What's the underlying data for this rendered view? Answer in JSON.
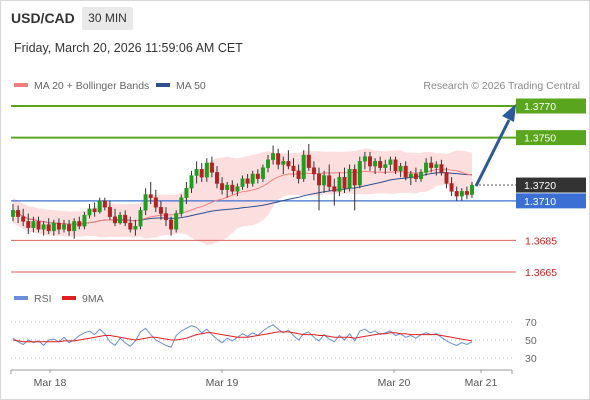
{
  "header": {
    "symbol": "USD/CAD",
    "timeframe": "30 MIN",
    "datetime": "Friday, March 20, 2026 11:59:06 AM CET"
  },
  "legend": {
    "ma20": "MA 20 + Bollinger Bands",
    "ma50": "MA 50",
    "credit": "Research © 2026 Trading Central",
    "rsi": "RSI",
    "rsi_ma": "9MA"
  },
  "colors": {
    "ma20": "#f08080",
    "ma50": "#2f4f8f",
    "bull": "#1e9e1e",
    "bear": "#b22222",
    "resistance": "#5aa51e",
    "pivot": "#3b6fd4",
    "support": "#e06060",
    "current": "#333333",
    "rsi": "#6a8fd8",
    "rsi_ma": "#e02020",
    "arrow": "#2a5a9a"
  },
  "chart_data": [
    {
      "type": "candlestick",
      "ylim": [
        1.3655,
        1.3785
      ],
      "x_ticks": [
        "Mar 18",
        "Mar 19",
        "Mar 20",
        "Mar 21"
      ],
      "levels": [
        {
          "label": "1.3770",
          "value": 1.377,
          "kind": "resistance"
        },
        {
          "label": "1.3750",
          "value": 1.375,
          "kind": "resistance"
        },
        {
          "label": "1.3720",
          "value": 1.372,
          "kind": "current"
        },
        {
          "label": "1.3710",
          "value": 1.371,
          "kind": "pivot"
        },
        {
          "label": "1.3685",
          "value": 1.3685,
          "kind": "support"
        },
        {
          "label": "1.3665",
          "value": 1.3665,
          "kind": "support"
        }
      ],
      "forecast_target": 1.377,
      "candles": [
        [
          1.37,
          1.3708,
          1.3697,
          1.3704
        ],
        [
          1.3704,
          1.3707,
          1.3696,
          1.37
        ],
        [
          1.37,
          1.3705,
          1.3694,
          1.3697
        ],
        [
          1.3697,
          1.3702,
          1.3689,
          1.3693
        ],
        [
          1.3693,
          1.37,
          1.369,
          1.3697
        ],
        [
          1.3697,
          1.37,
          1.369,
          1.3692
        ],
        [
          1.3692,
          1.3697,
          1.3688,
          1.3695
        ],
        [
          1.3695,
          1.3699,
          1.3689,
          1.3691
        ],
        [
          1.3691,
          1.3698,
          1.3688,
          1.3696
        ],
        [
          1.3696,
          1.3699,
          1.3689,
          1.3692
        ],
        [
          1.3692,
          1.3698,
          1.369,
          1.3695
        ],
        [
          1.3695,
          1.3698,
          1.3688,
          1.3691
        ],
        [
          1.3691,
          1.3699,
          1.3686,
          1.3697
        ],
        [
          1.3697,
          1.37,
          1.3692,
          1.3694
        ],
        [
          1.3694,
          1.3703,
          1.3692,
          1.3701
        ],
        [
          1.3701,
          1.3708,
          1.3699,
          1.3705
        ],
        [
          1.3705,
          1.3709,
          1.37,
          1.3703
        ],
        [
          1.3703,
          1.3712,
          1.3702,
          1.371
        ],
        [
          1.371,
          1.3712,
          1.3704,
          1.3706
        ],
        [
          1.3706,
          1.371,
          1.3698,
          1.37
        ],
        [
          1.37,
          1.3705,
          1.3694,
          1.3696
        ],
        [
          1.3696,
          1.3703,
          1.3695,
          1.3701
        ],
        [
          1.3701,
          1.3704,
          1.3694,
          1.3696
        ],
        [
          1.3696,
          1.37,
          1.369,
          1.3692
        ],
        [
          1.3692,
          1.3698,
          1.3688,
          1.3694
        ],
        [
          1.3694,
          1.3706,
          1.3692,
          1.3704
        ],
        [
          1.3704,
          1.3718,
          1.3701,
          1.3714
        ],
        [
          1.3714,
          1.3722,
          1.3708,
          1.3712
        ],
        [
          1.3712,
          1.3717,
          1.3703,
          1.3706
        ],
        [
          1.3706,
          1.371,
          1.3698,
          1.3702
        ],
        [
          1.3702,
          1.3706,
          1.3694,
          1.3698
        ],
        [
          1.3698,
          1.37,
          1.3688,
          1.3692
        ],
        [
          1.3692,
          1.3704,
          1.369,
          1.3702
        ],
        [
          1.3702,
          1.3714,
          1.37,
          1.3712
        ],
        [
          1.3712,
          1.3722,
          1.3708,
          1.3718
        ],
        [
          1.3718,
          1.3729,
          1.3715,
          1.3726
        ],
        [
          1.3726,
          1.3735,
          1.3721,
          1.373
        ],
        [
          1.373,
          1.3734,
          1.3722,
          1.3725
        ],
        [
          1.3725,
          1.3737,
          1.3722,
          1.3734
        ],
        [
          1.3734,
          1.3738,
          1.3725,
          1.3728
        ],
        [
          1.3728,
          1.3732,
          1.3718,
          1.3721
        ],
        [
          1.3721,
          1.3725,
          1.3714,
          1.3717
        ],
        [
          1.3717,
          1.3722,
          1.3712,
          1.372
        ],
        [
          1.372,
          1.3723,
          1.3714,
          1.3716
        ],
        [
          1.3716,
          1.3721,
          1.3713,
          1.3719
        ],
        [
          1.3719,
          1.3726,
          1.3717,
          1.3724
        ],
        [
          1.3724,
          1.3727,
          1.3718,
          1.3721
        ],
        [
          1.3721,
          1.3729,
          1.3719,
          1.3727
        ],
        [
          1.3727,
          1.373,
          1.3721,
          1.3724
        ],
        [
          1.3724,
          1.3733,
          1.3722,
          1.3731
        ],
        [
          1.3731,
          1.3739,
          1.3728,
          1.3736
        ],
        [
          1.3736,
          1.3745,
          1.3733,
          1.374
        ],
        [
          1.374,
          1.3743,
          1.373,
          1.3733
        ],
        [
          1.3733,
          1.3738,
          1.3727,
          1.3735
        ],
        [
          1.3735,
          1.3742,
          1.373,
          1.3732
        ],
        [
          1.3732,
          1.3737,
          1.3725,
          1.3729
        ],
        [
          1.3729,
          1.3733,
          1.3721,
          1.3724
        ],
        [
          1.3724,
          1.3742,
          1.3722,
          1.3739
        ],
        [
          1.3739,
          1.3746,
          1.3729,
          1.3731
        ],
        [
          1.3731,
          1.3735,
          1.3723,
          1.3727
        ],
        [
          1.3727,
          1.3731,
          1.3704,
          1.372
        ],
        [
          1.372,
          1.3729,
          1.3715,
          1.3726
        ],
        [
          1.3726,
          1.3733,
          1.3716,
          1.3719
        ],
        [
          1.3719,
          1.3724,
          1.3707,
          1.3716
        ],
        [
          1.3716,
          1.3728,
          1.3713,
          1.3725
        ],
        [
          1.3725,
          1.3731,
          1.3715,
          1.3718
        ],
        [
          1.3718,
          1.3733,
          1.3716,
          1.373
        ],
        [
          1.373,
          1.3733,
          1.3704,
          1.372
        ],
        [
          1.372,
          1.3738,
          1.3718,
          1.3735
        ],
        [
          1.3735,
          1.3741,
          1.373,
          1.3738
        ],
        [
          1.3738,
          1.3741,
          1.3729,
          1.3732
        ],
        [
          1.3732,
          1.3737,
          1.3727,
          1.3735
        ],
        [
          1.3735,
          1.3738,
          1.3729,
          1.3731
        ],
        [
          1.3731,
          1.3736,
          1.3727,
          1.3733
        ],
        [
          1.3733,
          1.3738,
          1.3729,
          1.3736
        ],
        [
          1.3736,
          1.3738,
          1.3727,
          1.3729
        ],
        [
          1.3729,
          1.3734,
          1.3725,
          1.3732
        ],
        [
          1.3732,
          1.3735,
          1.3723,
          1.3725
        ],
        [
          1.3725,
          1.3729,
          1.372,
          1.3727
        ],
        [
          1.3727,
          1.3731,
          1.3722,
          1.3724
        ],
        [
          1.3724,
          1.373,
          1.3722,
          1.3728
        ],
        [
          1.3728,
          1.3737,
          1.3726,
          1.3734
        ],
        [
          1.3734,
          1.3738,
          1.3728,
          1.3731
        ],
        [
          1.3731,
          1.3735,
          1.3726,
          1.3733
        ],
        [
          1.3733,
          1.3736,
          1.3726,
          1.3728
        ],
        [
          1.3728,
          1.3731,
          1.3718,
          1.3721
        ],
        [
          1.3721,
          1.3725,
          1.3713,
          1.3716
        ],
        [
          1.3716,
          1.3719,
          1.371,
          1.3713
        ],
        [
          1.3713,
          1.3718,
          1.371,
          1.3716
        ],
        [
          1.3716,
          1.3719,
          1.3711,
          1.3714
        ],
        [
          1.3714,
          1.3722,
          1.3712,
          1.372
        ]
      ]
    },
    {
      "type": "line",
      "title": "RSI",
      "ylim": [
        20,
        80
      ],
      "y_ticks": [
        70,
        50,
        30
      ],
      "series": [
        {
          "name": "RSI",
          "values": [
            52,
            48,
            45,
            50,
            47,
            49,
            44,
            50,
            51,
            48,
            53,
            47,
            50,
            55,
            58,
            60,
            56,
            62,
            57,
            48,
            44,
            52,
            47,
            43,
            49,
            59,
            63,
            56,
            50,
            47,
            44,
            42,
            55,
            60,
            63,
            66,
            64,
            58,
            62,
            56,
            51,
            47,
            52,
            49,
            53,
            57,
            54,
            58,
            55,
            60,
            64,
            67,
            62,
            58,
            61,
            55,
            50,
            57,
            59,
            53,
            49,
            56,
            51,
            48,
            55,
            50,
            57,
            49,
            60,
            62,
            58,
            60,
            56,
            58,
            60,
            55,
            57,
            53,
            55,
            52,
            56,
            58,
            56,
            57,
            53,
            49,
            46,
            44,
            47,
            45,
            48
          ]
        },
        {
          "name": "9MA",
          "values": [
            50,
            49,
            48,
            48,
            48,
            48,
            48,
            48,
            48,
            48,
            49,
            49,
            49,
            50,
            51,
            52,
            53,
            54,
            55,
            55,
            54,
            53,
            52,
            51,
            50,
            51,
            52,
            53,
            53,
            52,
            51,
            50,
            50,
            51,
            52,
            54,
            56,
            57,
            58,
            58,
            57,
            56,
            55,
            54,
            53,
            53,
            53,
            54,
            55,
            56,
            57,
            58,
            59,
            59,
            59,
            58,
            57,
            56,
            56,
            56,
            55,
            55,
            54,
            53,
            53,
            53,
            53,
            52,
            53,
            54,
            55,
            56,
            57,
            57,
            58,
            58,
            57,
            57,
            56,
            56,
            56,
            56,
            56,
            56,
            55,
            54,
            53,
            52,
            51,
            50,
            49
          ]
        }
      ]
    }
  ]
}
